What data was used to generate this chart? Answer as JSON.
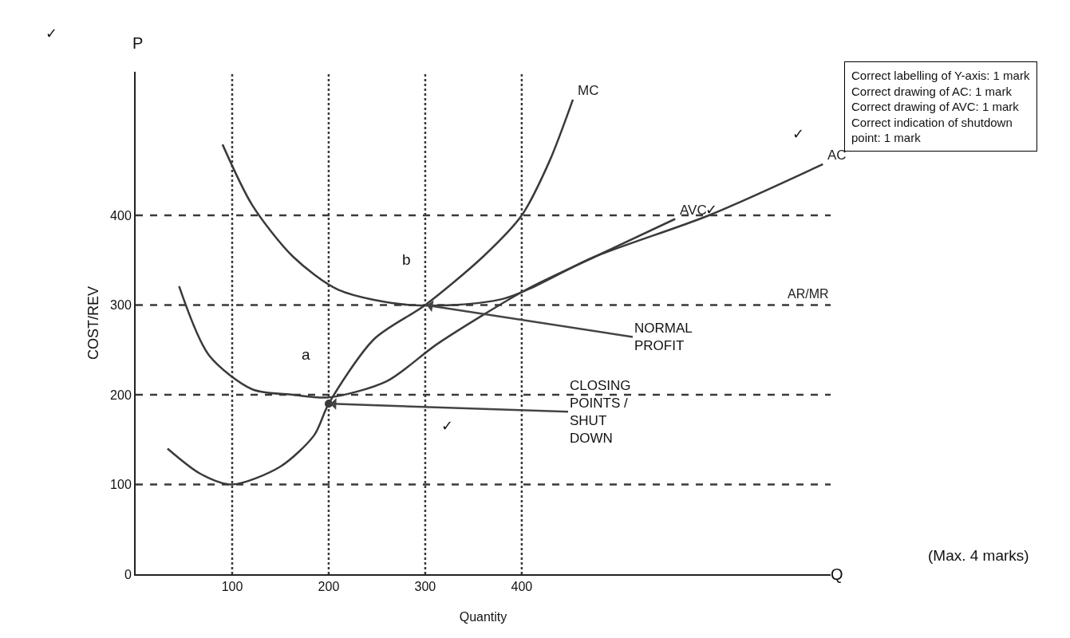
{
  "chart_data": {
    "type": "line",
    "xlabel": "Quantity",
    "ylabel": "COST/REV",
    "xlim": [
      0,
      720
    ],
    "ylim": [
      0,
      560
    ],
    "xticks": [
      100,
      200,
      300,
      400
    ],
    "yticks": [
      0,
      100,
      200,
      300,
      400
    ],
    "grid": false,
    "legend": false,
    "marker": "none",
    "line_style": "solid",
    "series": [
      {
        "name": "MC",
        "color": "#3a3a3a",
        "x": [
          33,
          67,
          100,
          150,
          185,
          200,
          247,
          300,
          360,
          400,
          429,
          453
        ],
        "values": [
          140,
          112,
          100,
          120,
          155,
          190,
          262,
          300,
          354,
          400,
          461,
          529
        ]
      },
      {
        "name": "AC",
        "color": "#3a3a3a",
        "x": [
          90,
          121,
          163,
          210,
          285,
          381,
          476,
          594,
          712
        ],
        "values": [
          479,
          411,
          354,
          317,
          300,
          307,
          354,
          400,
          457
        ]
      },
      {
        "name": "AVC",
        "color": "#3a3a3a",
        "x": [
          45,
          76,
          121,
          163,
          200,
          260,
          313,
          406,
          476,
          559
        ],
        "values": [
          321,
          244,
          206,
          200,
          197,
          215,
          257,
          318,
          354,
          396
        ]
      },
      {
        "type": "scatter",
        "color": "#3a3a3a",
        "marker": "circle",
        "x": [
          200
        ],
        "values": [
          190
        ]
      }
    ],
    "ref_lines": [
      {
        "axis": "y",
        "value": 100,
        "line_style": "dashed",
        "color": "#3a3a3a"
      },
      {
        "axis": "y",
        "value": 200,
        "line_style": "dashed",
        "color": "#3a3a3a"
      },
      {
        "axis": "y",
        "value": 300,
        "line_style": "dashed",
        "color": "#3a3a3a",
        "label": "AR/MR"
      },
      {
        "axis": "y",
        "value": 400,
        "line_style": "dashed",
        "color": "#3a3a3a"
      },
      {
        "axis": "x",
        "value": 100,
        "line_style": "dotted",
        "color": "#3a3a3a"
      },
      {
        "axis": "x",
        "value": 200,
        "line_style": "dotted",
        "color": "#3a3a3a"
      },
      {
        "axis": "x",
        "value": 300,
        "line_style": "dotted",
        "color": "#3a3a3a"
      },
      {
        "axis": "x",
        "value": 400,
        "line_style": "dotted",
        "color": "#3a3a3a"
      }
    ],
    "annotations": [
      "P",
      "Q",
      "Correct labelling of Y-axis: 1 mark\nCorrect drawing of AC: 1 mark\nCorrect drawing of AVC: 1 mark\nCorrect indication of shutdown\npoint: 1 mark",
      "(Max. 4 marks)",
      "✓",
      "✓",
      "✓",
      "✓",
      "a",
      "b",
      {
        "text": "NORMAL\nPROFIT",
        "x": 300,
        "y": 300
      },
      {
        "text": "CLOSING\nPOINTS /\nSHUT\nDOWN",
        "x": 200,
        "y": 190
      }
    ]
  }
}
